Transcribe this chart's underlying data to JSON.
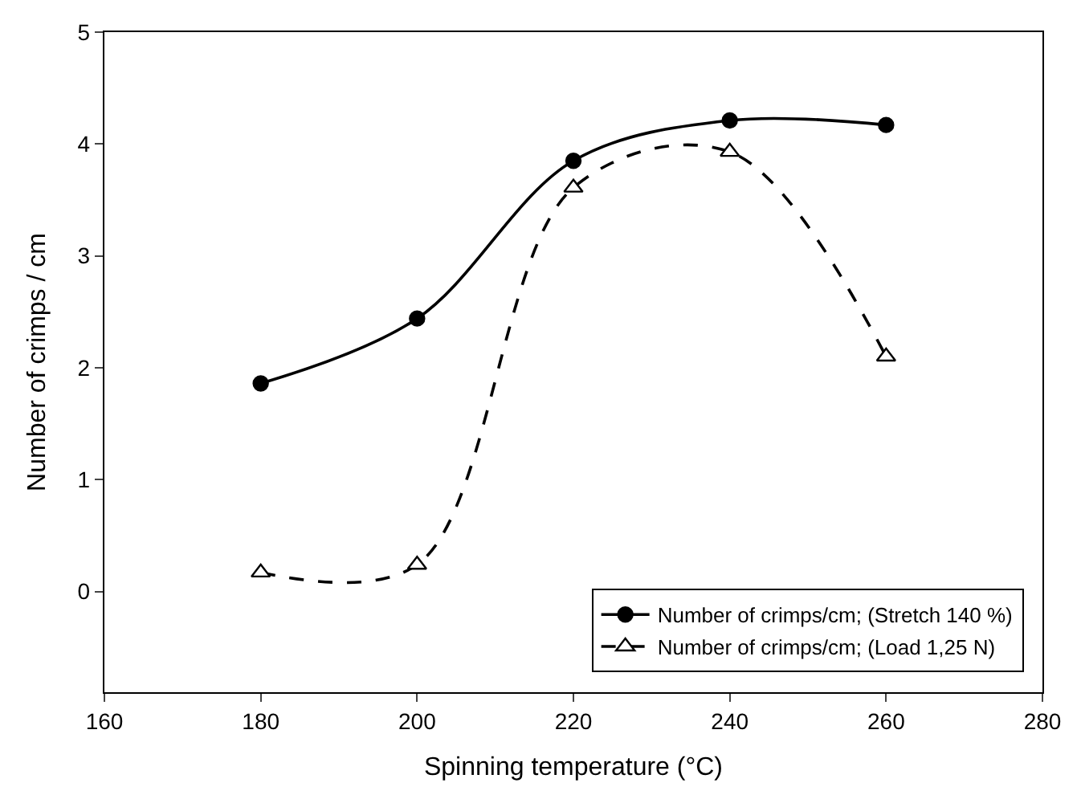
{
  "chart_data": {
    "type": "line",
    "xlabel": "Spinning temperature (°C)",
    "ylabel": "Number of crimps / cm",
    "x": [
      180,
      200,
      220,
      240,
      260
    ],
    "series": [
      {
        "name": "Number of crimps/cm; (Stretch 140 %)",
        "color": "#000000",
        "values": [
          1.86,
          2.44,
          3.85,
          4.21,
          4.17
        ],
        "marker": "circle",
        "line_style": "solid"
      },
      {
        "name": "Number of crimps/cm; (Load 1,25 N)",
        "color": "#000000",
        "values": [
          0.17,
          0.24,
          3.61,
          3.93,
          2.1
        ],
        "marker": "triangle",
        "line_style": "dashed"
      }
    ],
    "xlim": [
      160,
      280
    ],
    "xticks": [
      160,
      180,
      200,
      220,
      240,
      260,
      280
    ],
    "ylim": [
      -0.9,
      5
    ],
    "yticks": [
      0,
      1,
      2,
      3,
      4,
      5
    ],
    "legend": "bottom right"
  }
}
